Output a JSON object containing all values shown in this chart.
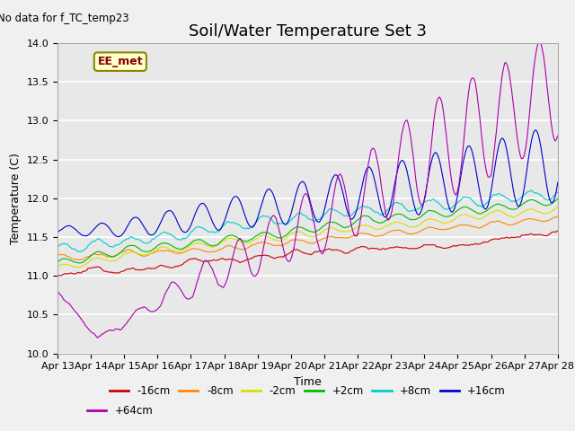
{
  "title": "Soil/Water Temperature Set 3",
  "xlabel": "Time",
  "ylabel": "Temperature (C)",
  "annotation_text": "No data for f_TC_temp23",
  "legend_label_text": "EE_met",
  "ylim": [
    10.0,
    14.0
  ],
  "yticks": [
    10.0,
    10.5,
    11.0,
    11.5,
    12.0,
    12.5,
    13.0,
    13.5,
    14.0
  ],
  "series": [
    {
      "label": "-16cm",
      "color": "#cc0000"
    },
    {
      "label": "-8cm",
      "color": "#ff8800"
    },
    {
      "label": "-2cm",
      "color": "#dddd00"
    },
    {
      "label": "+2cm",
      "color": "#00bb00"
    },
    {
      "label": "+8cm",
      "color": "#00cccc"
    },
    {
      "label": "+16cm",
      "color": "#0000cc"
    },
    {
      "label": "+64cm",
      "color": "#aa00aa"
    }
  ],
  "fig_bg_color": "#f0f0f0",
  "plot_bg_color": "#e8e8e8",
  "title_fontsize": 13,
  "axis_label_fontsize": 9,
  "tick_fontsize": 8
}
